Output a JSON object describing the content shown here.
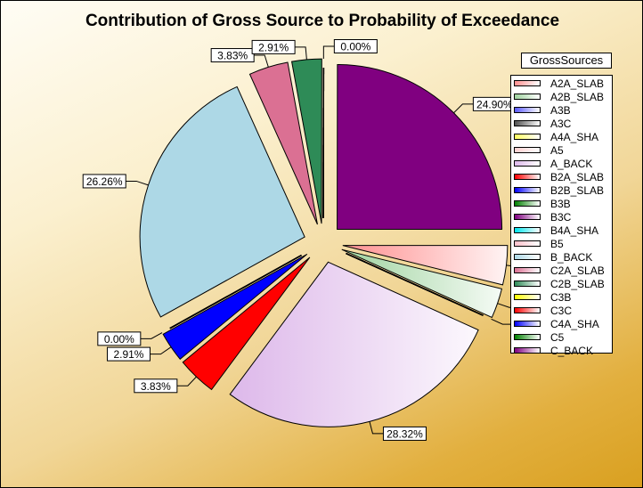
{
  "chart_data": {
    "type": "pie",
    "title": "Contribution of Gross Source to Probability of Exceedance",
    "legend_title": "GrossSources",
    "legend_position": "right",
    "slices": [
      {
        "name": "A2A_SLAB",
        "value": 3.83,
        "label": "3.83%",
        "color": "#ff9090"
      },
      {
        "name": "A2B_SLAB",
        "value": 2.91,
        "label": "2.91%",
        "color": "#9fd39f"
      },
      {
        "name": "A3B",
        "value": 0.0,
        "label": "0.00%",
        "color": "#5a5aff"
      },
      {
        "name": "A3C",
        "value": 0.0,
        "label": "",
        "color": "#505050"
      },
      {
        "name": "A4A_SHA",
        "value": 0.0,
        "label": "",
        "color": "#ffff60"
      },
      {
        "name": "A5",
        "value": 0.0,
        "label": "",
        "color": "#ffd0d0"
      },
      {
        "name": "A_BACK",
        "value": 28.32,
        "label": "28.32%",
        "color": "#ddb8ea"
      },
      {
        "name": "B2A_SLAB",
        "value": 3.83,
        "label": "3.83%",
        "color": "#ff0000"
      },
      {
        "name": "B2B_SLAB",
        "value": 2.91,
        "label": "2.91%",
        "color": "#0000ff"
      },
      {
        "name": "B3B",
        "value": 0.0,
        "label": "0.00%",
        "color": "#008000"
      },
      {
        "name": "B3C",
        "value": 0.0,
        "label": "",
        "color": "#800080"
      },
      {
        "name": "B4A_SHA",
        "value": 0.0,
        "label": "",
        "color": "#00e5ee"
      },
      {
        "name": "B5",
        "value": 0.0,
        "label": "",
        "color": "#ffc0cb"
      },
      {
        "name": "B_BACK",
        "value": 26.26,
        "label": "26.26%",
        "color": "#add8e6"
      },
      {
        "name": "C2A_SLAB",
        "value": 3.83,
        "label": "3.83%",
        "color": "#db7093"
      },
      {
        "name": "C2B_SLAB",
        "value": 2.91,
        "label": "2.91%",
        "color": "#2e8b57"
      },
      {
        "name": "C3B",
        "value": 0.0,
        "label": "0.00%",
        "color": "#ffff00"
      },
      {
        "name": "C3C",
        "value": 0.0,
        "label": "",
        "color": "#ff0000"
      },
      {
        "name": "C4A_SHA",
        "value": 0.0,
        "label": "",
        "color": "#0000ff"
      },
      {
        "name": "C5",
        "value": 0.0,
        "label": "",
        "color": "#008000"
      },
      {
        "name": "C_BACK",
        "value": 24.9,
        "label": "24.90%",
        "color": "#800080"
      }
    ]
  }
}
